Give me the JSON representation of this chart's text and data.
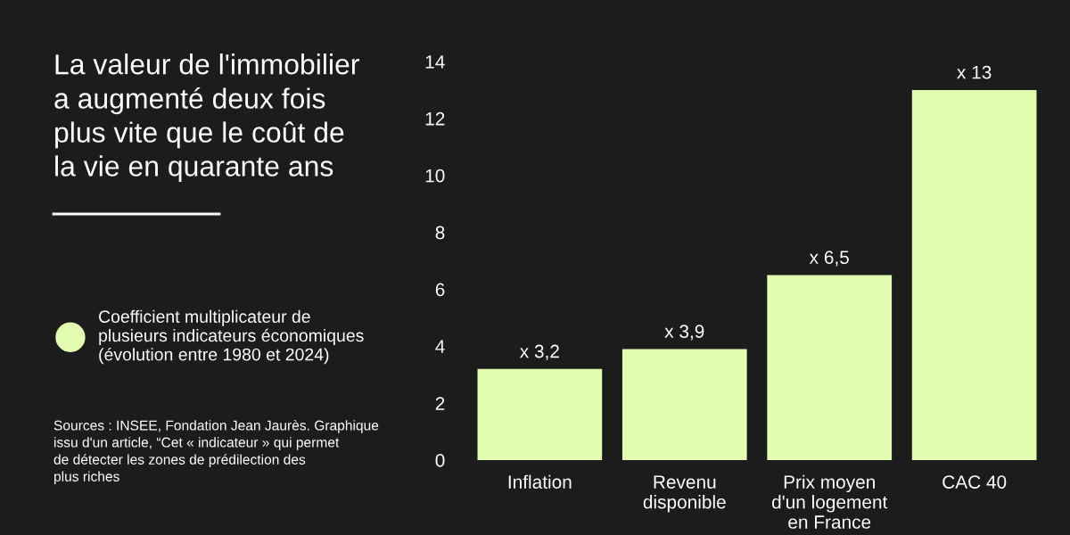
{
  "chart_data": {
    "type": "bar",
    "title": "La valeur de l'immobilier\na augmenté deux fois\nplus vite que le coût de\nla vie en quarante ans",
    "categories": [
      "Inflation",
      "Revenu\ndisponible",
      "Prix moyen\nd'un logement\nen France",
      "CAC 40"
    ],
    "series": [
      {
        "name": "Coefficient multiplicateur de\nplusieurs indicateurs économiques\n(évolution entre 1980 et 2024)",
        "color": "#e2fdb0",
        "values": [
          3.2,
          3.9,
          6.5,
          13
        ],
        "value_labels": [
          "x 3,2",
          "x 3,9",
          "x 6,5",
          "x 13"
        ]
      }
    ],
    "ylim": [
      0,
      14
    ],
    "yticks": [
      0,
      2,
      4,
      6,
      8,
      10,
      12,
      14
    ],
    "grid": false,
    "legend": "left",
    "annotations": [
      "Sources : INSEE, Fondation Jean Jaurès. Graphique\nissu d'un article, “Cet « indicateur » qui permet\nde détecter les zones de prédilection des\nplus riches"
    ]
  }
}
